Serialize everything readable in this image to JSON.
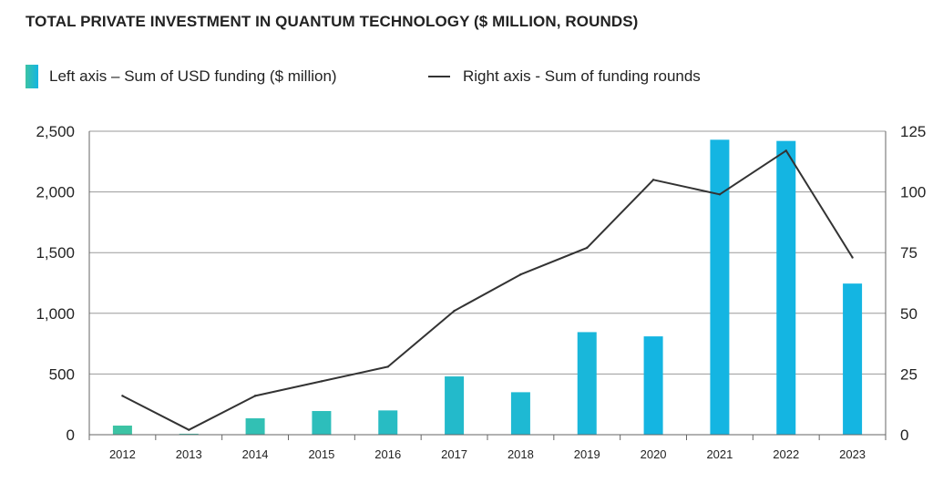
{
  "chart_data": {
    "type": "bar",
    "title": "TOTAL PRIVATE INVESTMENT IN QUANTUM TECHNOLOGY ($ MILLION, ROUNDS)",
    "categories": [
      "2012",
      "2013",
      "2014",
      "2015",
      "2016",
      "2017",
      "2018",
      "2019",
      "2020",
      "2021",
      "2022",
      "2023"
    ],
    "series": [
      {
        "name": "Left axis – Sum of USD funding ($ million)",
        "axis": "left",
        "type": "bar",
        "values": [
          75,
          8,
          135,
          195,
          200,
          480,
          350,
          845,
          810,
          2430,
          2420,
          1245
        ]
      },
      {
        "name": "Right axis - Sum of funding rounds",
        "axis": "right",
        "type": "line",
        "values": [
          16,
          2,
          16,
          22,
          28,
          51,
          66,
          77,
          105,
          99,
          117,
          73
        ]
      }
    ],
    "left_axis": {
      "ylim": [
        0,
        2500
      ],
      "ticks": [
        "0",
        "500",
        "1,000",
        "1,500",
        "2,000",
        "2,500"
      ]
    },
    "right_axis": {
      "ylim": [
        0,
        125
      ],
      "ticks": [
        "0",
        "25",
        "50",
        "75",
        "100",
        "125"
      ]
    },
    "grid": true,
    "legend_position": "top-left",
    "colors": {
      "bar_start": "#3cc3a4",
      "bar_end": "#14b5e2",
      "line": "#333333",
      "grid": "#9a9a9a",
      "axis": "#666666"
    }
  }
}
